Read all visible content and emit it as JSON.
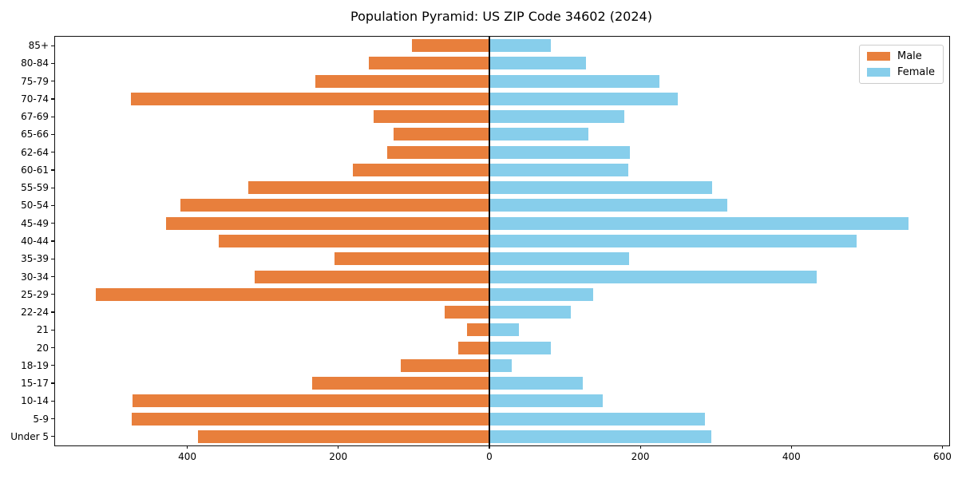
{
  "title": "Population Pyramid: US ZIP Code 34602 (2024)",
  "legend": {
    "male_label": "Male",
    "female_label": "Female"
  },
  "colors": {
    "male": "#E87F3C",
    "female": "#87CEEB",
    "axis": "#101010",
    "legend_border": "#cccccc"
  },
  "chart_data": {
    "type": "bar",
    "orientation": "horizontal-population-pyramid",
    "title": "Population Pyramid: US ZIP Code 34602 (2024)",
    "xlabel": "",
    "ylabel": "",
    "grid": false,
    "legend_position": "upper right",
    "zero_line": true,
    "categories": [
      "85+",
      "80-84",
      "75-79",
      "70-74",
      "67-69",
      "65-66",
      "62-64",
      "60-61",
      "55-59",
      "50-54",
      "45-49",
      "40-44",
      "35-39",
      "30-34",
      "25-29",
      "22-24",
      "21",
      "20",
      "18-19",
      "15-17",
      "10-14",
      "5-9",
      "Under 5"
    ],
    "series": [
      {
        "name": "Male",
        "side": "left",
        "color": "#E87F3C",
        "values": [
          102,
          160,
          230,
          475,
          153,
          127,
          135,
          181,
          319,
          409,
          428,
          358,
          205,
          311,
          521,
          59,
          30,
          41,
          117,
          235,
          472,
          473,
          386
        ]
      },
      {
        "name": "Female",
        "side": "right",
        "color": "#87CEEB",
        "values": [
          81,
          128,
          225,
          250,
          179,
          131,
          186,
          184,
          295,
          315,
          555,
          486,
          185,
          434,
          138,
          108,
          39,
          82,
          30,
          124,
          150,
          285,
          294
        ]
      }
    ],
    "xlim": [
      -575,
      609
    ],
    "x_ticks": [
      -400,
      -200,
      0,
      200,
      400,
      600
    ],
    "x_tick_labels": [
      "400",
      "200",
      "0",
      "200",
      "400",
      "600"
    ]
  }
}
